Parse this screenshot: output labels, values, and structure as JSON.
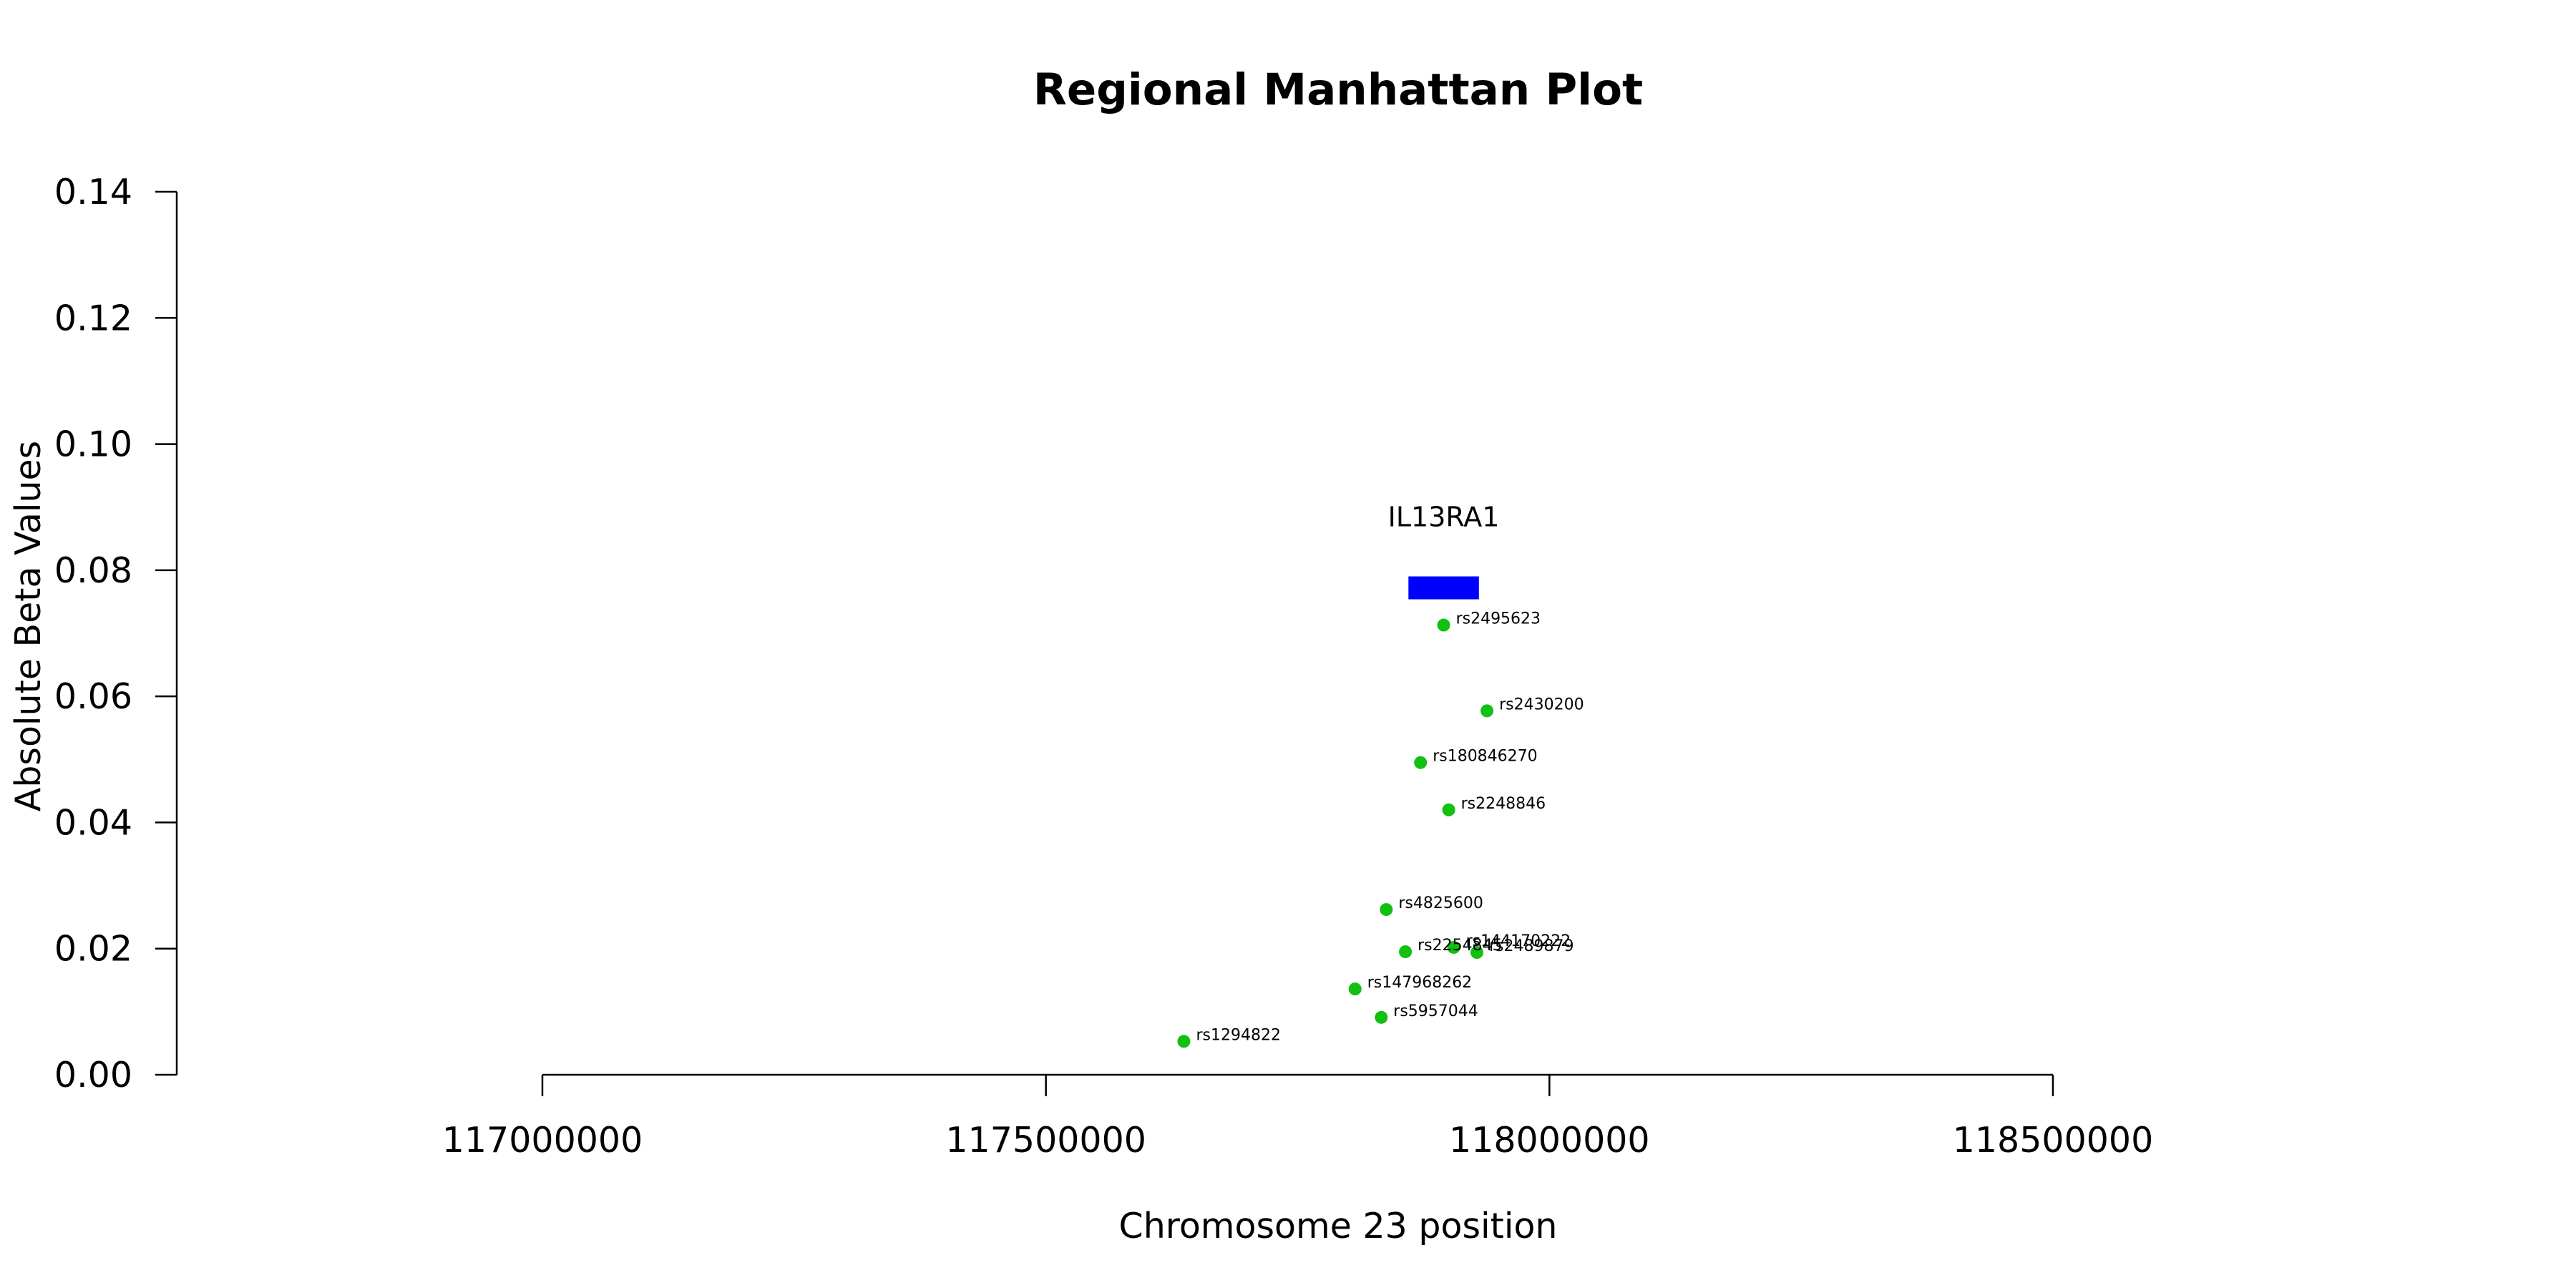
{
  "chart_data": {
    "type": "scatter",
    "title": "Regional Manhattan Plot",
    "xlabel": "Chromosome 23 position",
    "ylabel": "Absolute Beta Values",
    "xlim": [
      117000000,
      118500000
    ],
    "ylim": [
      0,
      0.14
    ],
    "x_ticks": [
      "117000000",
      "117500000",
      "118000000",
      "118500000"
    ],
    "y_ticks": [
      "0.00",
      "0.02",
      "0.04",
      "0.06",
      "0.08",
      "0.10",
      "0.12",
      "0.14"
    ],
    "point_color": "#11c011",
    "gene": {
      "name": "IL13RA1",
      "start": 117860000,
      "end": 117930000,
      "y": 0.0772,
      "color": "#0000ff"
    },
    "points": [
      {
        "label": "rs2495623",
        "x": 117895000,
        "y": 0.0713
      },
      {
        "label": "rs2430200",
        "x": 117938000,
        "y": 0.0577
      },
      {
        "label": "rs180846270",
        "x": 117872000,
        "y": 0.0495
      },
      {
        "label": "rs2248846",
        "x": 117900000,
        "y": 0.042
      },
      {
        "label": "rs4825600",
        "x": 117838000,
        "y": 0.0262
      },
      {
        "label": "rs144170222",
        "x": 117905000,
        "y": 0.0202
      },
      {
        "label": "rs2489879",
        "x": 117928000,
        "y": 0.0194
      },
      {
        "label": "rs2254845",
        "x": 117857000,
        "y": 0.0195
      },
      {
        "label": "rs147968262",
        "x": 117807000,
        "y": 0.0136
      },
      {
        "label": "rs5957044",
        "x": 117833000,
        "y": 0.0091
      },
      {
        "label": "rs1294822",
        "x": 117637000,
        "y": 0.0053
      }
    ]
  }
}
